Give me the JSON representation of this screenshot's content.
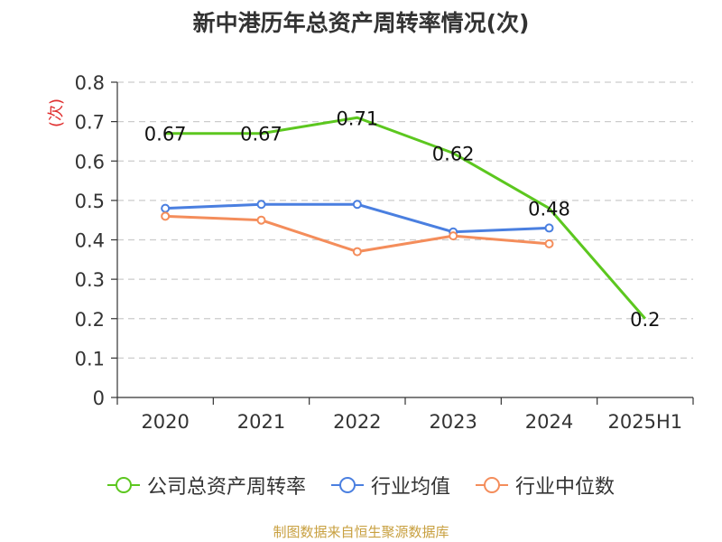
{
  "chart_data": {
    "type": "line",
    "title": "新中港历年总资产周转率情况(次)",
    "ylabel": "(次)",
    "xlabel": "",
    "categories": [
      "2020",
      "2021",
      "2022",
      "2023",
      "2024",
      "2025H1"
    ],
    "ylim": [
      0,
      0.8
    ],
    "yticks": [
      0,
      0.1,
      0.2,
      0.3,
      0.4,
      0.5,
      0.6,
      0.7,
      0.8
    ],
    "ytick_labels": [
      "0",
      "0.1",
      "0.2",
      "0.3",
      "0.4",
      "0.5",
      "0.6",
      "0.7",
      "0.8"
    ],
    "grid": true,
    "legend_position": "bottom",
    "series": [
      {
        "name": "公司总资产周转率",
        "color": "#5cc71f",
        "values": [
          0.67,
          0.67,
          0.71,
          0.62,
          0.48,
          0.2
        ],
        "data_labels": [
          "0.67",
          "0.67",
          "0.71",
          "0.62",
          "0.48",
          "0.2"
        ],
        "markers": false
      },
      {
        "name": "行业均值",
        "color": "#4a7fe0",
        "values": [
          0.48,
          0.49,
          0.49,
          0.42,
          0.43,
          null
        ],
        "markers": true
      },
      {
        "name": "行业中位数",
        "color": "#f48d5b",
        "values": [
          0.46,
          0.45,
          0.37,
          0.41,
          0.39,
          null
        ],
        "markers": true
      }
    ],
    "source": "制图数据来自恒生聚源数据库"
  }
}
